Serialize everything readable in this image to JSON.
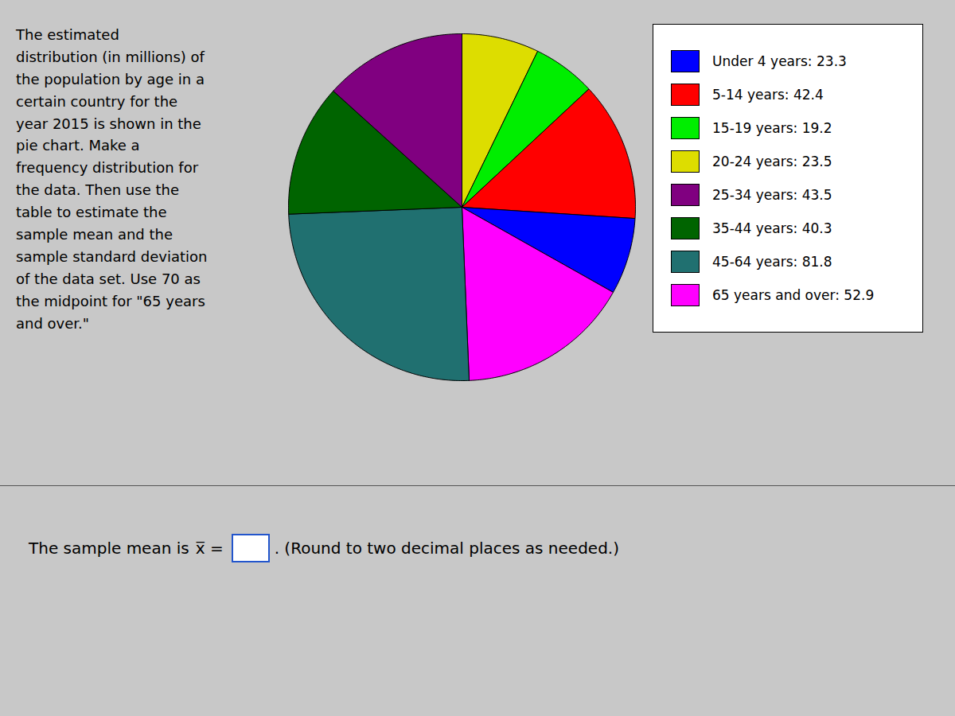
{
  "chart_data": {
    "type": "pie",
    "categories": [
      "20-24 years",
      "15-19 years",
      "5-14 years",
      "Under 4 years",
      "65 years and over",
      "45-64 years",
      "35-44 years",
      "25-34 years"
    ],
    "values": [
      23.5,
      19.2,
      42.4,
      23.3,
      52.9,
      81.8,
      40.3,
      43.5
    ],
    "colors": [
      "#DDDD00",
      "#00EE00",
      "#FF0000",
      "#0000FF",
      "#FF00FF",
      "#207070",
      "#006400",
      "#800080"
    ],
    "legend": "right",
    "legend_entries": [
      {
        "label": "Under 4 years:  23.3",
        "color": "#0000FF"
      },
      {
        "label": "5-14 years:  42.4",
        "color": "#FF0000"
      },
      {
        "label": "15-19 years:  19.2",
        "color": "#00EE00"
      },
      {
        "label": "20-24 years:  23.5",
        "color": "#DDDD00"
      },
      {
        "label": "25-34 years:  43.5",
        "color": "#800080"
      },
      {
        "label": "35-44 years:  40.3",
        "color": "#006400"
      },
      {
        "label": "45-64 years:  81.8",
        "color": "#207070"
      },
      {
        "label": "65 years and over:  52.9",
        "color": "#FF00FF"
      }
    ],
    "annotations": [
      "The estimated\ndistribution (in millions) of\nthe population by age in a\ncertain country for the\nyear 2015 is shown in the\npie chart. Make a\nfrequency distribution for\nthe data. Then use the\ntable to estimate the\nsample mean and the\nsample standard deviation\nof the data set. Use 70 as\nthe midpoint for \"65 years\nand over.\"",
      "The sample mean is",
      "x̅ =",
      ". (Round to two decimal places as needed.)"
    ]
  }
}
